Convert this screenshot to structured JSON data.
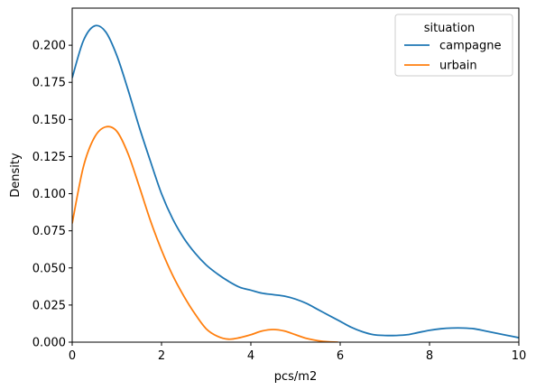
{
  "chart_data": {
    "type": "line",
    "title": "",
    "xlabel": "pcs/m2",
    "ylabel": "Density",
    "xlim": [
      0,
      10
    ],
    "ylim": [
      0,
      0.225
    ],
    "xticks": [
      0,
      2,
      4,
      6,
      8,
      10
    ],
    "xtick_labels": [
      "0",
      "2",
      "4",
      "6",
      "8",
      "10"
    ],
    "yticks": [
      0,
      0.025,
      0.05,
      0.075,
      0.1,
      0.125,
      0.15,
      0.175,
      0.2
    ],
    "ytick_labels": [
      "0.000",
      "0.025",
      "0.050",
      "0.075",
      "0.100",
      "0.125",
      "0.150",
      "0.175",
      "0.200"
    ],
    "grid": false,
    "legend": {
      "title": "situation",
      "placement": "top-right"
    },
    "series": [
      {
        "name": "campagne",
        "color": "#1f77b4",
        "x": [
          0,
          0.25,
          0.5,
          0.75,
          1.0,
          1.25,
          1.5,
          1.75,
          2.0,
          2.25,
          2.5,
          2.75,
          3.0,
          3.25,
          3.5,
          3.75,
          4.0,
          4.25,
          4.5,
          4.75,
          5.0,
          5.25,
          5.5,
          5.75,
          6.0,
          6.25,
          6.5,
          6.75,
          7.0,
          7.25,
          7.5,
          7.75,
          8.0,
          8.25,
          8.5,
          8.75,
          9.0,
          9.25,
          9.5,
          9.75,
          10.0
        ],
        "y": [
          0.178,
          0.203,
          0.213,
          0.209,
          0.193,
          0.17,
          0.145,
          0.122,
          0.1,
          0.083,
          0.07,
          0.06,
          0.052,
          0.046,
          0.041,
          0.037,
          0.035,
          0.033,
          0.032,
          0.031,
          0.029,
          0.026,
          0.022,
          0.018,
          0.014,
          0.01,
          0.007,
          0.005,
          0.0045,
          0.0045,
          0.005,
          0.0065,
          0.008,
          0.009,
          0.0095,
          0.0095,
          0.009,
          0.0075,
          0.006,
          0.0045,
          0.003
        ]
      },
      {
        "name": "urbain",
        "color": "#ff7f0e",
        "x": [
          0,
          0.25,
          0.5,
          0.75,
          1.0,
          1.25,
          1.5,
          1.75,
          2.0,
          2.25,
          2.5,
          2.75,
          3.0,
          3.25,
          3.5,
          3.75,
          4.0,
          4.25,
          4.5,
          4.75,
          5.0,
          5.25,
          5.5,
          5.75,
          5.95
        ],
        "y": [
          0.08,
          0.118,
          0.138,
          0.145,
          0.142,
          0.127,
          0.105,
          0.082,
          0.062,
          0.045,
          0.031,
          0.019,
          0.009,
          0.004,
          0.002,
          0.003,
          0.005,
          0.0075,
          0.0085,
          0.0075,
          0.005,
          0.0025,
          0.001,
          0.0002,
          0.0
        ]
      }
    ]
  }
}
